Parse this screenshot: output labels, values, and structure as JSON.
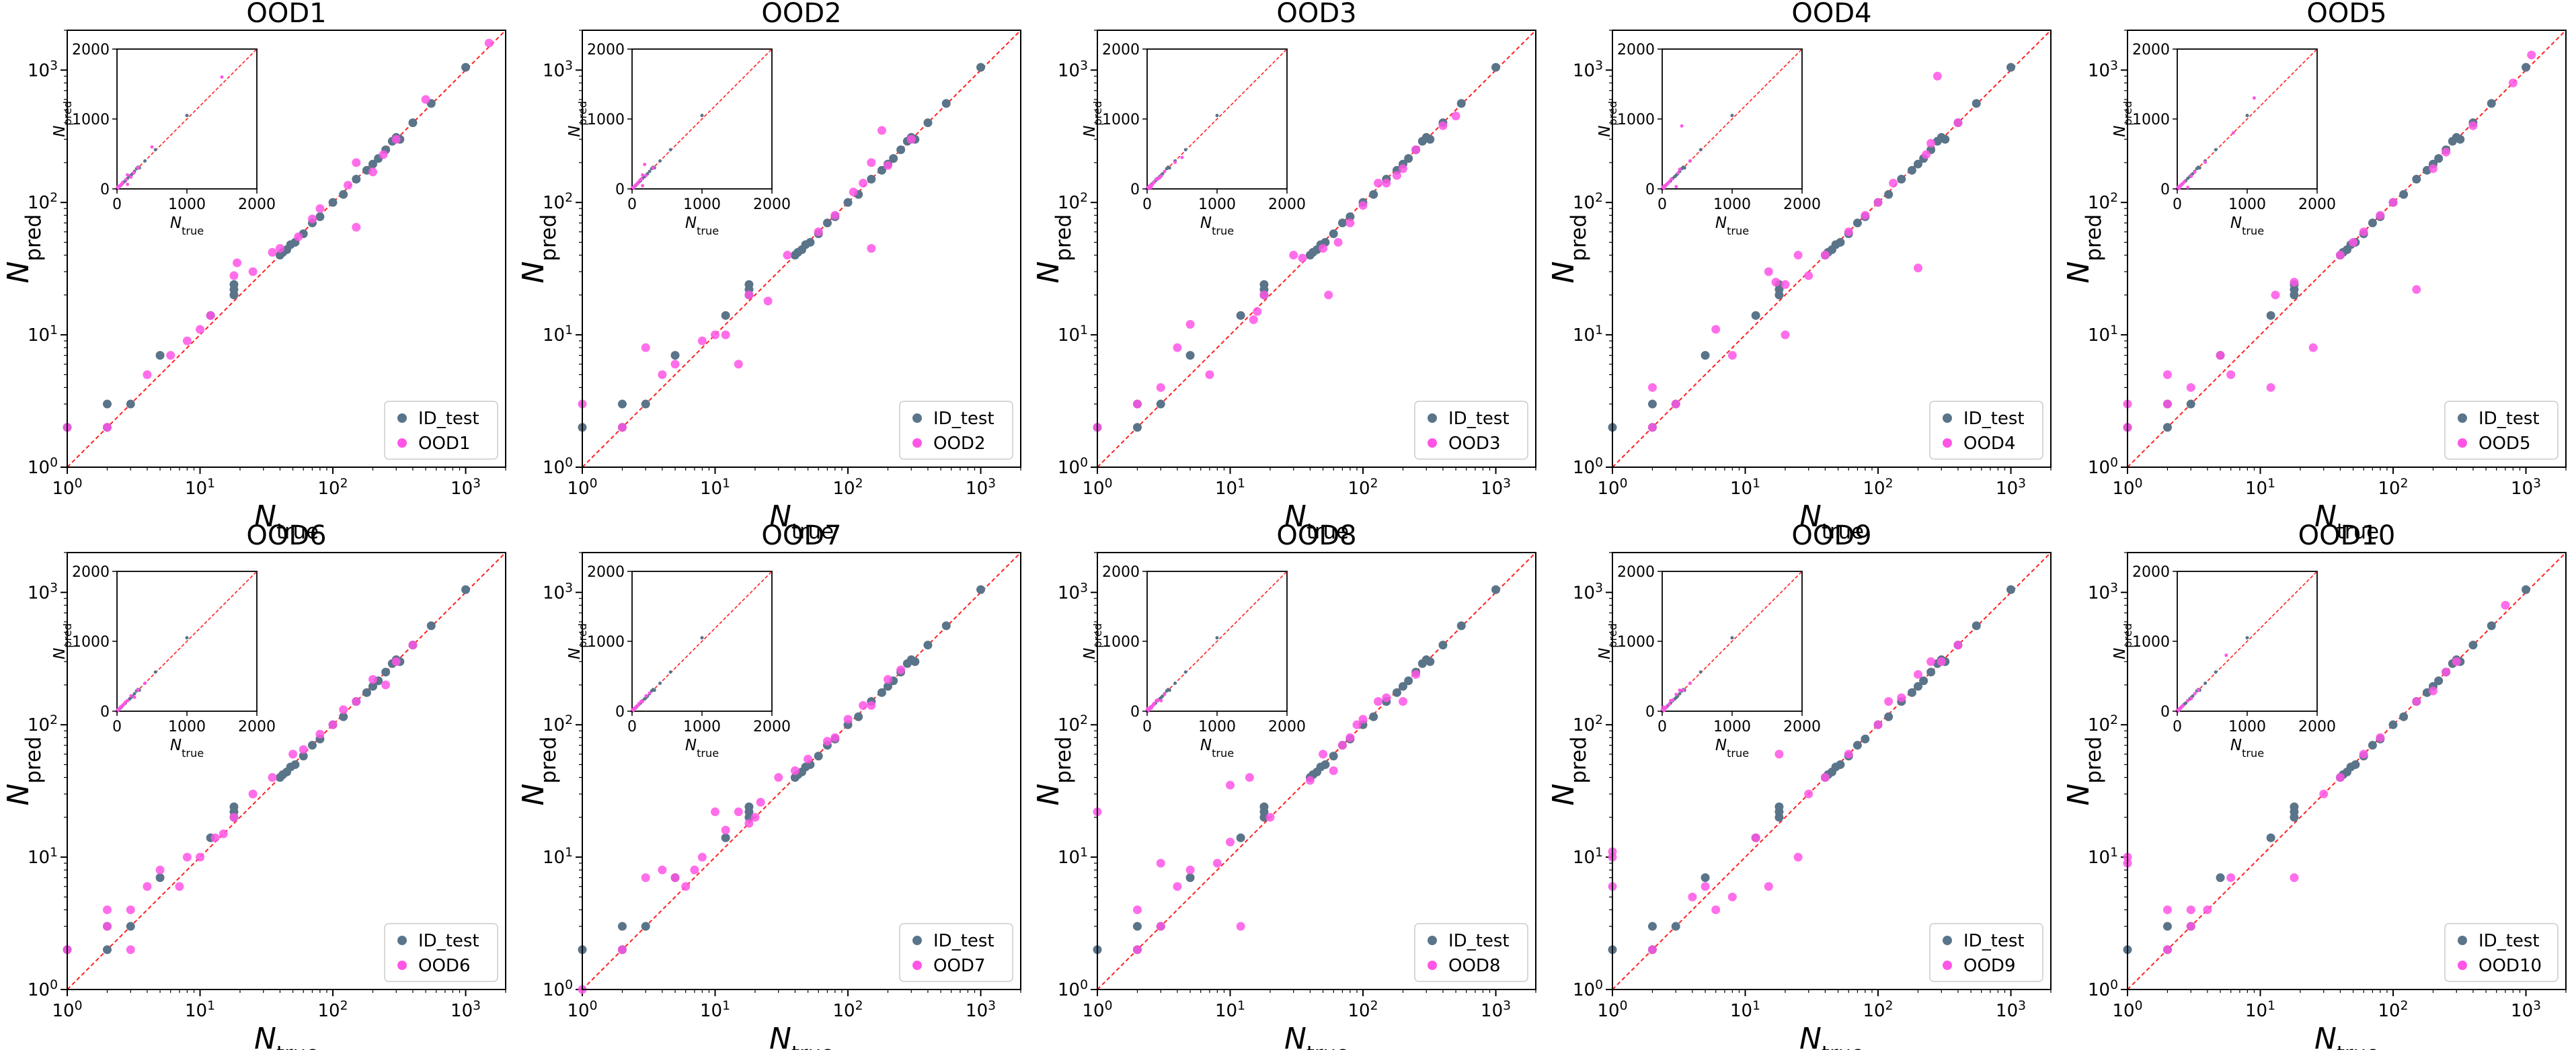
{
  "chart_data": {
    "type": "scatter",
    "shared": {
      "xlabel_main": "N",
      "xlabel_sub": "true",
      "ylabel_main": "N",
      "ylabel_sub": "pred",
      "xscale": "log",
      "yscale": "log",
      "xlim": [
        1,
        2000
      ],
      "ylim": [
        1,
        2000
      ],
      "x_ticks": [
        {
          "base": "10",
          "exp": "0"
        },
        {
          "base": "10",
          "exp": "1"
        },
        {
          "base": "10",
          "exp": "2"
        },
        {
          "base": "10",
          "exp": "3"
        }
      ],
      "y_ticks": [
        {
          "base": "10",
          "exp": "0"
        },
        {
          "base": "10",
          "exp": "1"
        },
        {
          "base": "10",
          "exp": "2"
        },
        {
          "base": "10",
          "exp": "3"
        }
      ],
      "inset": {
        "xlim": [
          0,
          2000
        ],
        "ylim": [
          0,
          2000
        ],
        "x_ticks": [
          "0",
          "1000",
          "2000"
        ],
        "y_ticks": [
          "0",
          "1000",
          "2000"
        ]
      },
      "reference_line": "y = x",
      "legend_position": "lower-right",
      "colors": {
        "id_test": "#5a7489",
        "ood": "#ff55e6",
        "diagonal": "#ff2020"
      },
      "id_test_label": "ID_test",
      "id_test_points": [
        [
          1,
          2
        ],
        [
          2,
          2
        ],
        [
          2,
          3
        ],
        [
          3,
          3
        ],
        [
          5,
          7
        ],
        [
          12,
          14
        ],
        [
          18,
          20
        ],
        [
          18,
          22
        ],
        [
          18,
          24
        ],
        [
          40,
          40
        ],
        [
          42,
          42
        ],
        [
          45,
          44
        ],
        [
          48,
          48
        ],
        [
          52,
          50
        ],
        [
          60,
          58
        ],
        [
          70,
          70
        ],
        [
          80,
          78
        ],
        [
          100,
          100
        ],
        [
          120,
          115
        ],
        [
          150,
          150
        ],
        [
          180,
          175
        ],
        [
          200,
          195
        ],
        [
          220,
          215
        ],
        [
          250,
          250
        ],
        [
          280,
          290
        ],
        [
          300,
          310
        ],
        [
          320,
          300
        ],
        [
          400,
          400
        ],
        [
          550,
          560
        ],
        [
          1000,
          1050
        ]
      ]
    },
    "panels": [
      {
        "title": "OOD1",
        "label": "OOD1",
        "points": [
          [
            1,
            2
          ],
          [
            2,
            2
          ],
          [
            4,
            5
          ],
          [
            6,
            7
          ],
          [
            8,
            9
          ],
          [
            10,
            11
          ],
          [
            12,
            14
          ],
          [
            18,
            28
          ],
          [
            19,
            35
          ],
          [
            25,
            30
          ],
          [
            35,
            42
          ],
          [
            40,
            45
          ],
          [
            55,
            55
          ],
          [
            70,
            75
          ],
          [
            80,
            90
          ],
          [
            130,
            135
          ],
          [
            150,
            65
          ],
          [
            150,
            200
          ],
          [
            200,
            170
          ],
          [
            240,
            230
          ],
          [
            300,
            300
          ],
          [
            500,
            600
          ],
          [
            1500,
            1600
          ]
        ]
      },
      {
        "title": "OOD2",
        "label": "OOD2",
        "points": [
          [
            1,
            3
          ],
          [
            2,
            2
          ],
          [
            3,
            8
          ],
          [
            4,
            5
          ],
          [
            5,
            6
          ],
          [
            8,
            9
          ],
          [
            10,
            10
          ],
          [
            12,
            10
          ],
          [
            15,
            6
          ],
          [
            18,
            20
          ],
          [
            25,
            18
          ],
          [
            35,
            40
          ],
          [
            60,
            60
          ],
          [
            80,
            80
          ],
          [
            110,
            120
          ],
          [
            130,
            140
          ],
          [
            150,
            45
          ],
          [
            150,
            200
          ],
          [
            180,
            350
          ],
          [
            200,
            190
          ],
          [
            300,
            300
          ]
        ]
      },
      {
        "title": "OOD3",
        "label": "OOD3",
        "points": [
          [
            1,
            2
          ],
          [
            2,
            3
          ],
          [
            3,
            4
          ],
          [
            4,
            8
          ],
          [
            5,
            12
          ],
          [
            7,
            5
          ],
          [
            15,
            13
          ],
          [
            16,
            15
          ],
          [
            18,
            20
          ],
          [
            30,
            40
          ],
          [
            35,
            38
          ],
          [
            50,
            45
          ],
          [
            55,
            20
          ],
          [
            65,
            50
          ],
          [
            80,
            70
          ],
          [
            100,
            95
          ],
          [
            130,
            140
          ],
          [
            150,
            140
          ],
          [
            180,
            160
          ],
          [
            200,
            180
          ],
          [
            250,
            250
          ],
          [
            400,
            380
          ],
          [
            500,
            450
          ]
        ]
      },
      {
        "title": "OOD4",
        "label": "OOD4",
        "points": [
          [
            2,
            2
          ],
          [
            2,
            4
          ],
          [
            3,
            3
          ],
          [
            6,
            11
          ],
          [
            8,
            7
          ],
          [
            15,
            30
          ],
          [
            17,
            25
          ],
          [
            20,
            10
          ],
          [
            20,
            24
          ],
          [
            25,
            40
          ],
          [
            30,
            28
          ],
          [
            40,
            40
          ],
          [
            60,
            60
          ],
          [
            80,
            80
          ],
          [
            100,
            100
          ],
          [
            130,
            140
          ],
          [
            200,
            32
          ],
          [
            230,
            230
          ],
          [
            250,
            280
          ],
          [
            280,
            900
          ],
          [
            400,
            400
          ]
        ]
      },
      {
        "title": "OOD5",
        "label": "OOD5",
        "points": [
          [
            1,
            2
          ],
          [
            1,
            3
          ],
          [
            2,
            3
          ],
          [
            2,
            5
          ],
          [
            3,
            4
          ],
          [
            5,
            7
          ],
          [
            6,
            5
          ],
          [
            12,
            4
          ],
          [
            13,
            20
          ],
          [
            18,
            25
          ],
          [
            25,
            8
          ],
          [
            40,
            40
          ],
          [
            50,
            50
          ],
          [
            60,
            60
          ],
          [
            80,
            80
          ],
          [
            100,
            100
          ],
          [
            150,
            22
          ],
          [
            200,
            180
          ],
          [
            250,
            240
          ],
          [
            400,
            380
          ],
          [
            800,
            800
          ],
          [
            1100,
            1300
          ]
        ]
      },
      {
        "title": "OOD6",
        "label": "OOD6",
        "points": [
          [
            1,
            2
          ],
          [
            2,
            3
          ],
          [
            2,
            4
          ],
          [
            3,
            2
          ],
          [
            3,
            4
          ],
          [
            4,
            6
          ],
          [
            5,
            8
          ],
          [
            7,
            6
          ],
          [
            8,
            10
          ],
          [
            10,
            10
          ],
          [
            13,
            14
          ],
          [
            15,
            15
          ],
          [
            18,
            20
          ],
          [
            25,
            30
          ],
          [
            35,
            40
          ],
          [
            50,
            60
          ],
          [
            60,
            65
          ],
          [
            80,
            85
          ],
          [
            100,
            100
          ],
          [
            120,
            130
          ],
          [
            150,
            150
          ],
          [
            200,
            220
          ],
          [
            250,
            200
          ],
          [
            300,
            300
          ],
          [
            400,
            400
          ]
        ]
      },
      {
        "title": "OOD7",
        "label": "OOD7",
        "points": [
          [
            1,
            1
          ],
          [
            2,
            2
          ],
          [
            3,
            7
          ],
          [
            4,
            8
          ],
          [
            5,
            7
          ],
          [
            6,
            6
          ],
          [
            7,
            8
          ],
          [
            8,
            10
          ],
          [
            10,
            22
          ],
          [
            12,
            16
          ],
          [
            15,
            22
          ],
          [
            18,
            18
          ],
          [
            20,
            20
          ],
          [
            22,
            26
          ],
          [
            30,
            40
          ],
          [
            40,
            45
          ],
          [
            50,
            55
          ],
          [
            70,
            75
          ],
          [
            80,
            80
          ],
          [
            100,
            110
          ],
          [
            130,
            140
          ],
          [
            150,
            140
          ],
          [
            200,
            220
          ],
          [
            250,
            260
          ]
        ]
      },
      {
        "title": "OOD8",
        "label": "OOD8",
        "points": [
          [
            1,
            22
          ],
          [
            2,
            2
          ],
          [
            2,
            4
          ],
          [
            3,
            3
          ],
          [
            3,
            9
          ],
          [
            4,
            6
          ],
          [
            5,
            8
          ],
          [
            8,
            9
          ],
          [
            10,
            13
          ],
          [
            10,
            35
          ],
          [
            12,
            3
          ],
          [
            14,
            40
          ],
          [
            20,
            20
          ],
          [
            40,
            38
          ],
          [
            50,
            60
          ],
          [
            60,
            45
          ],
          [
            70,
            70
          ],
          [
            80,
            80
          ],
          [
            90,
            100
          ],
          [
            100,
            110
          ],
          [
            130,
            150
          ],
          [
            150,
            160
          ],
          [
            200,
            150
          ],
          [
            250,
            240
          ]
        ]
      },
      {
        "title": "OOD9",
        "label": "OOD9",
        "points": [
          [
            1,
            6
          ],
          [
            1,
            10
          ],
          [
            1,
            11
          ],
          [
            2,
            2
          ],
          [
            4,
            5
          ],
          [
            5,
            6
          ],
          [
            6,
            4
          ],
          [
            8,
            5
          ],
          [
            12,
            14
          ],
          [
            15,
            6
          ],
          [
            18,
            60
          ],
          [
            25,
            10
          ],
          [
            30,
            30
          ],
          [
            40,
            40
          ],
          [
            60,
            60
          ],
          [
            100,
            100
          ],
          [
            120,
            150
          ],
          [
            150,
            160
          ],
          [
            200,
            240
          ],
          [
            250,
            300
          ],
          [
            300,
            300
          ],
          [
            400,
            400
          ]
        ]
      },
      {
        "title": "OOD10",
        "label": "OOD10",
        "points": [
          [
            1,
            9
          ],
          [
            1,
            10
          ],
          [
            2,
            2
          ],
          [
            2,
            4
          ],
          [
            3,
            3
          ],
          [
            3,
            4
          ],
          [
            4,
            4
          ],
          [
            6,
            7
          ],
          [
            18,
            7
          ],
          [
            30,
            30
          ],
          [
            40,
            40
          ],
          [
            60,
            60
          ],
          [
            80,
            80
          ],
          [
            150,
            150
          ],
          [
            200,
            180
          ],
          [
            250,
            250
          ],
          [
            300,
            300
          ],
          [
            700,
            800
          ]
        ]
      }
    ]
  }
}
